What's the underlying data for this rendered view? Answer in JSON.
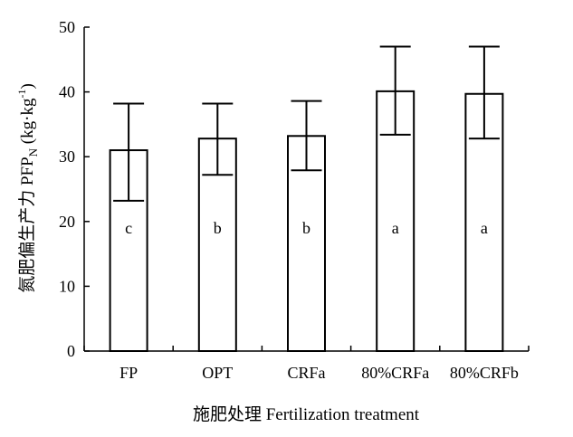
{
  "chart_data": {
    "type": "bar",
    "categories": [
      "FP",
      "OPT",
      "CRFa",
      "80%CRFa",
      "80%CRFb"
    ],
    "values": [
      31.0,
      32.8,
      33.2,
      40.1,
      39.7
    ],
    "error_low": [
      23.2,
      27.2,
      27.9,
      33.4,
      32.8
    ],
    "error_high": [
      38.2,
      38.2,
      38.6,
      47.0,
      47.0
    ],
    "significance_letters": [
      "c",
      "b",
      "b",
      "a",
      "a"
    ],
    "xlabel": "施肥处理 Fertilization treatment",
    "ylabel": {
      "prefix": "氮肥偏生产力 PFP",
      "subscript": "N",
      "unit_open": " (kg·kg",
      "unit_sup": "-1",
      "unit_close": ")"
    },
    "ylim": [
      0,
      50
    ],
    "yticks": [
      "0",
      "10",
      "20",
      "30",
      "40",
      "50"
    ],
    "bar_fill": "#ffffff",
    "bar_stroke": "#000000",
    "grid": false
  }
}
